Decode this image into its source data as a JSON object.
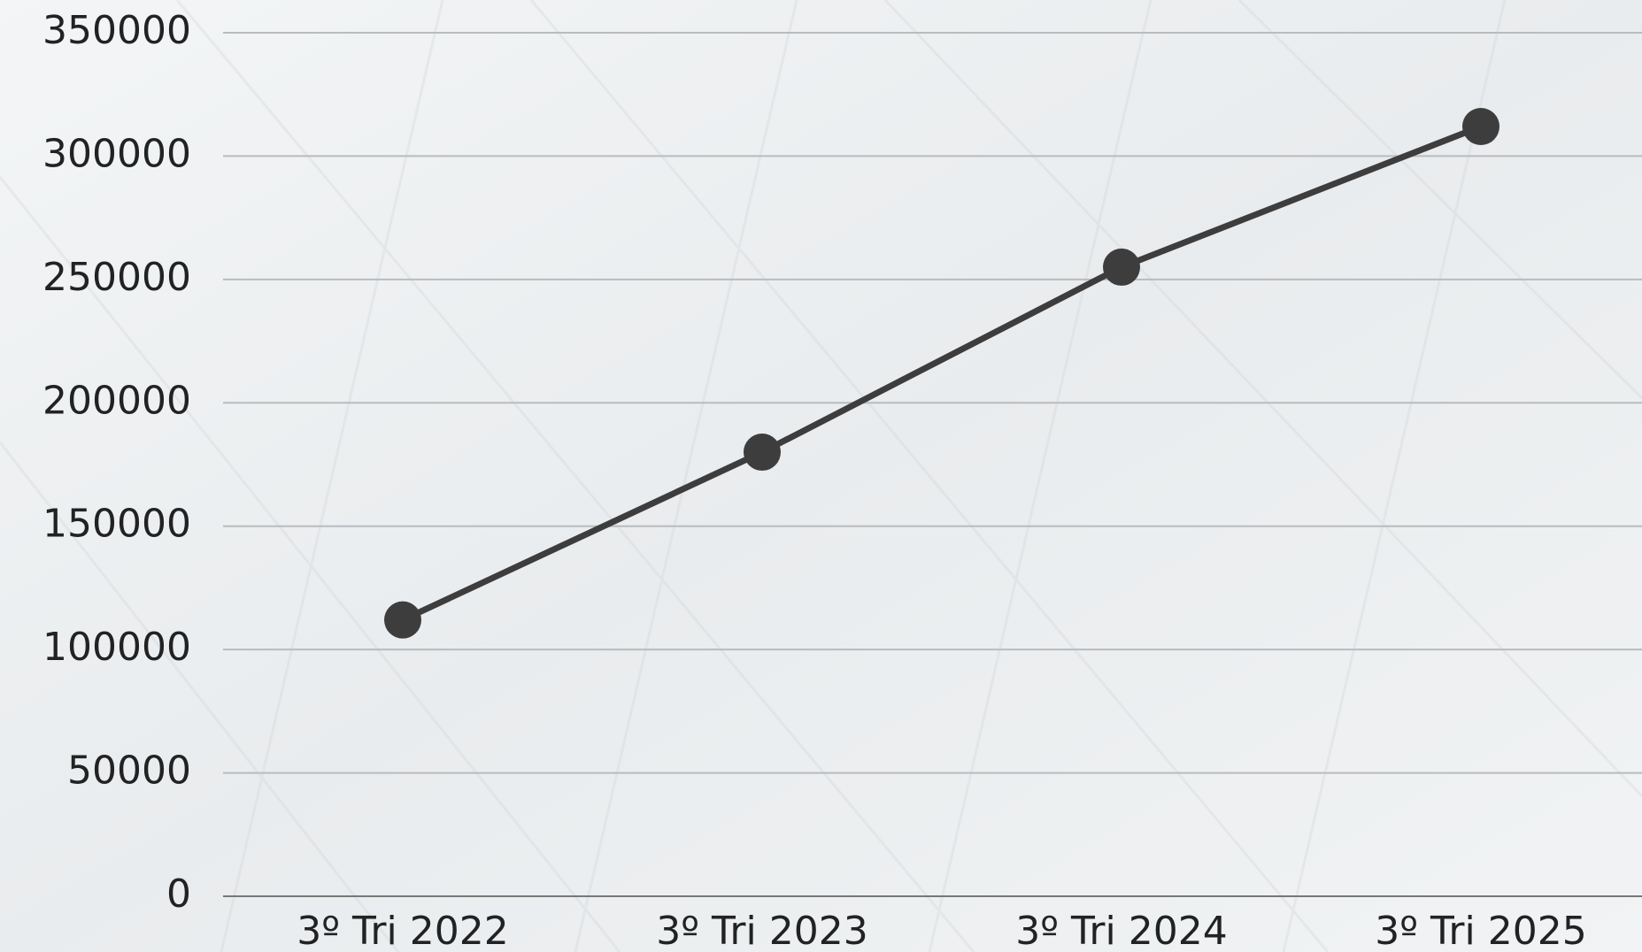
{
  "chart_data": {
    "type": "line",
    "categories": [
      "3º Tri 2022",
      "3º Tri 2023",
      "3º Tri 2024",
      "3º Tri 2025"
    ],
    "series": [
      {
        "color": "#3d3d3d",
        "values": [
          112000,
          180000,
          255000,
          312000
        ]
      }
    ],
    "ylim": [
      0,
      350000
    ],
    "yticks": [
      0,
      50000,
      100000,
      150000,
      200000,
      250000,
      300000,
      350000
    ],
    "grid": true
  }
}
